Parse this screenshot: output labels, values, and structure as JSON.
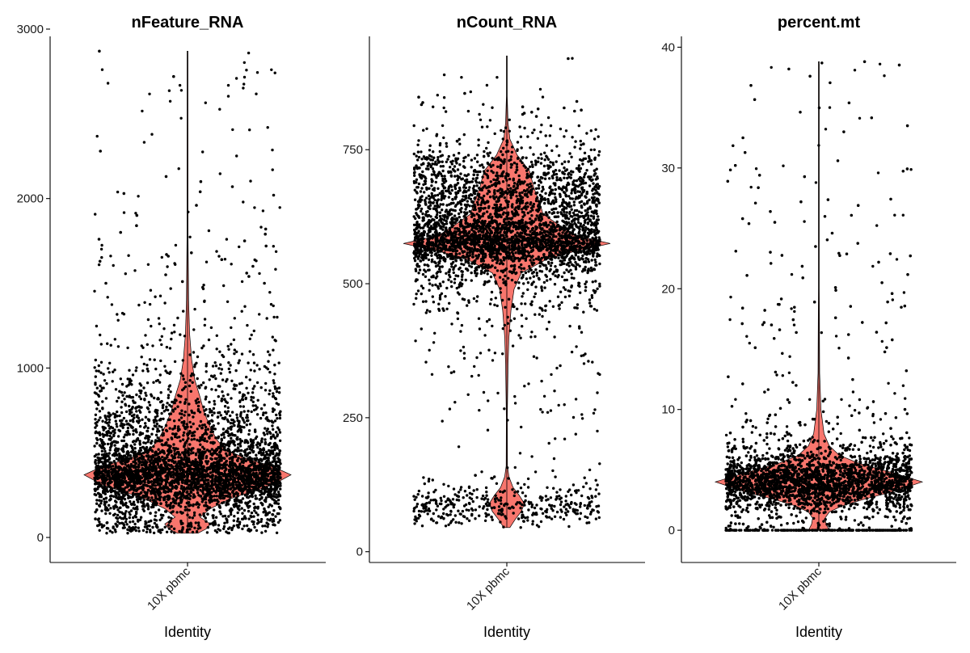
{
  "chart_data": [
    {
      "type": "violin",
      "title": "nFeature_RNA",
      "xlabel": "Identity",
      "ylabel": "",
      "categories": [
        "10X pbmc"
      ],
      "ylim": [
        -100,
        3000
      ],
      "yticks": [
        0,
        1000,
        2000,
        3000
      ],
      "fill_color": "#F8766D",
      "point_color": "#000000",
      "series": [
        {
          "name": "10X pbmc",
          "density": [
            [
              25,
              0.1
            ],
            [
              50,
              0.18
            ],
            [
              80,
              0.22
            ],
            [
              120,
              0.12
            ],
            [
              170,
              0.22
            ],
            [
              230,
              0.42
            ],
            [
              270,
              0.62
            ],
            [
              310,
              0.82
            ],
            [
              370,
              1.0
            ],
            [
              420,
              0.82
            ],
            [
              470,
              0.55
            ],
            [
              520,
              0.36
            ],
            [
              580,
              0.28
            ],
            [
              650,
              0.22
            ],
            [
              740,
              0.16
            ],
            [
              830,
              0.12
            ],
            [
              930,
              0.07
            ],
            [
              1050,
              0.04
            ],
            [
              1200,
              0.02
            ],
            [
              1400,
              0.01
            ],
            [
              1800,
              0.005
            ],
            [
              2870,
              0.004
            ]
          ],
          "outliers": [
            2870,
            2720,
            2280,
            2130,
            2100,
            2070,
            2040,
            2030,
            2020,
            1960,
            1900,
            1840,
            1820,
            1800,
            1790,
            1760,
            1750,
            1720,
            1680,
            1670,
            1660,
            1640,
            1630,
            1600,
            1560,
            1550,
            1540,
            1510,
            1500,
            1500
          ],
          "median": 380
        }
      ]
    },
    {
      "type": "violin",
      "title": "nCount_RNA",
      "xlabel": "Identity",
      "ylabel": "",
      "categories": [
        "10X pbmc"
      ],
      "ylim": [
        -5,
        975
      ],
      "yticks": [
        0,
        250,
        500,
        750
      ],
      "fill_color": "#F8766D",
      "point_color": "#000000",
      "series": [
        {
          "name": "10X pbmc",
          "density": [
            [
              45,
              0.03
            ],
            [
              60,
              0.08
            ],
            [
              75,
              0.14
            ],
            [
              90,
              0.17
            ],
            [
              105,
              0.12
            ],
            [
              120,
              0.06
            ],
            [
              140,
              0.02
            ],
            [
              160,
              0.006
            ],
            [
              250,
              0.005
            ],
            [
              350,
              0.012
            ],
            [
              400,
              0.02
            ],
            [
              450,
              0.04
            ],
            [
              490,
              0.07
            ],
            [
              520,
              0.14
            ],
            [
              545,
              0.38
            ],
            [
              560,
              0.65
            ],
            [
              575,
              1.0
            ],
            [
              590,
              0.66
            ],
            [
              610,
              0.5
            ],
            [
              630,
              0.35
            ],
            [
              650,
              0.32
            ],
            [
              680,
              0.26
            ],
            [
              710,
              0.22
            ],
            [
              740,
              0.1
            ],
            [
              770,
              0.03
            ],
            [
              800,
              0.012
            ],
            [
              850,
              0.004
            ],
            [
              925,
              0.002
            ]
          ],
          "outliers": [
            920,
            855,
            848,
            840,
            838,
            834,
            830,
            828,
            826,
            824,
            822,
            820,
            818,
            816,
            812
          ],
          "median": 570
        }
      ]
    },
    {
      "type": "violin",
      "title": "percent.mt",
      "xlabel": "Identity",
      "ylabel": "",
      "categories": [
        "10X pbmc"
      ],
      "ylim": [
        -2,
        41.5
      ],
      "yticks": [
        0,
        10,
        20,
        30,
        40
      ],
      "fill_color": "#F8766D",
      "point_color": "#000000",
      "series": [
        {
          "name": "10X pbmc",
          "density": [
            [
              0,
              0.1
            ],
            [
              0.5,
              0.07
            ],
            [
              1,
              0.06
            ],
            [
              1.5,
              0.1
            ],
            [
              2,
              0.22
            ],
            [
              2.6,
              0.45
            ],
            [
              3.2,
              0.72
            ],
            [
              4.0,
              1.0
            ],
            [
              4.8,
              0.7
            ],
            [
              5.5,
              0.4
            ],
            [
              6.2,
              0.2
            ],
            [
              7,
              0.1
            ],
            [
              8,
              0.05
            ],
            [
              10,
              0.02
            ],
            [
              13,
              0.008
            ],
            [
              20,
              0.004
            ],
            [
              38.8,
              0.003
            ]
          ],
          "outliers": [
            38.8,
            37.6,
            32.5,
            29.4,
            28.9,
            27.2,
            26.9,
            25.8,
            25.5,
            24.6,
            23.5,
            22.9,
            22.2,
            21.1,
            20.9,
            20.5,
            20.1,
            19.6,
            18.9,
            18.7,
            18.4,
            17.2,
            17.0,
            16.6,
            16.4,
            16.2
          ],
          "zero_mass": 0.07,
          "median": 4.2
        }
      ]
    }
  ]
}
